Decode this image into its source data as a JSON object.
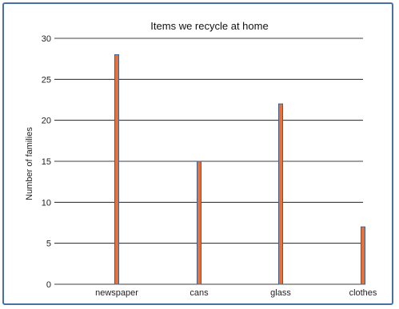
{
  "chart_data": {
    "type": "bar",
    "title": "Items we recycle at home",
    "xlabel": "",
    "ylabel": "Number of families",
    "categories": [
      "newspaper",
      "cans",
      "glass",
      "clothes"
    ],
    "values": [
      28,
      15,
      22,
      7
    ],
    "ylim": [
      0,
      30
    ],
    "yticks": [
      0,
      5,
      10,
      15,
      20,
      25,
      30
    ],
    "grid": "horizontal",
    "colors": {
      "bar_fill": "#e8703a",
      "bar_edge": "#3f5f8f",
      "grid": "#000000",
      "frame": "#4a6fa5"
    }
  }
}
